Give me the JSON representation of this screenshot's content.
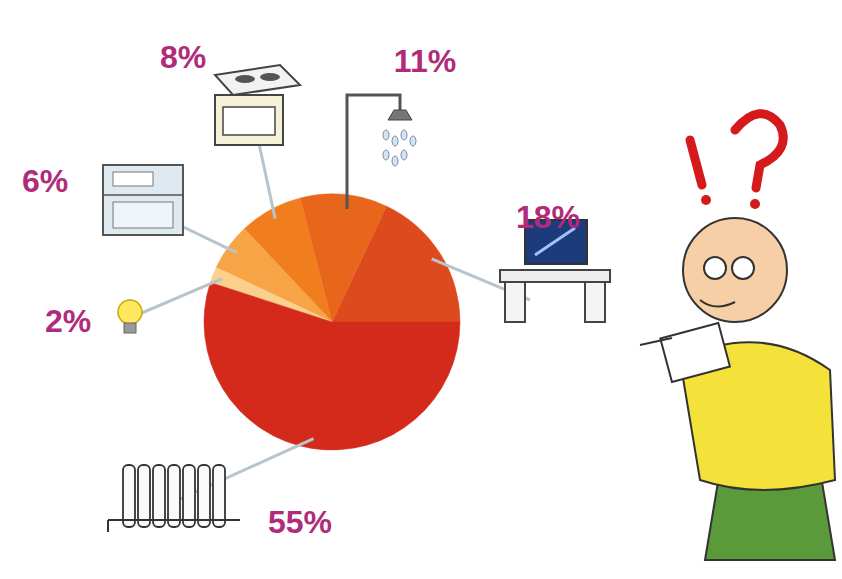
{
  "chart_data": {
    "type": "pie",
    "values": [
      18,
      11,
      8,
      6,
      2,
      55
    ],
    "value_labels": [
      "18%",
      "11%",
      "8%",
      "6%",
      "2%",
      "55%"
    ],
    "colors": [
      "#dd4a1e",
      "#e8661c",
      "#f07e1e",
      "#f6a445",
      "#fbd08c",
      "#d42a1c"
    ],
    "data_labels": true
  }
}
